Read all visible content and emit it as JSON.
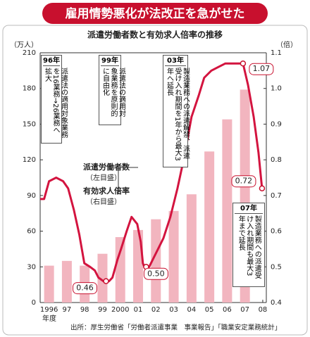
{
  "chart_data": {
    "type": "combo",
    "title": "雇用情勢悪化が法改正を急がせた",
    "subtitle": "派遣労働者数と有効求人倍率の推移",
    "y_label": "（万人）",
    "y2_label": "（倍）",
    "x_unit": "年度",
    "source": "出所：厚生労働省「労働者派遣事業　事業報告」「職業安定業務統計」",
    "xlim": [
      1995.5,
      2008.2
    ],
    "xticks": [
      1996,
      {
        "value": 1997,
        "label": "97"
      },
      {
        "value": 1998,
        "label": "98"
      },
      {
        "value": 1999,
        "label": "99"
      },
      2000,
      {
        "value": 2001,
        "label": "01"
      },
      {
        "value": 2002,
        "label": "02"
      },
      {
        "value": 2003,
        "label": "03"
      },
      {
        "value": 2004,
        "label": "04"
      },
      {
        "value": 2005,
        "label": "05"
      },
      {
        "value": 2006,
        "label": "06"
      },
      {
        "value": 2007,
        "label": "07"
      },
      {
        "value": 2008,
        "label": "08"
      }
    ],
    "ylim": [
      0,
      210
    ],
    "yticks": [
      0,
      30,
      60,
      90,
      120,
      150,
      180,
      210
    ],
    "y2lim": [
      0.4,
      1.1
    ],
    "y2ticks": [
      0.4,
      0.5,
      0.6,
      0.7,
      0.8,
      0.9,
      {
        "value": 1,
        "label": "1.0"
      },
      1.1
    ],
    "grid": false,
    "series": [
      {
        "name": "派遣労働者数",
        "note": "（左目盛）",
        "color": "#f2b5bf",
        "axis": "y",
        "x": [
          1996,
          1997,
          1998,
          1999,
          2000,
          2001,
          2002,
          2003,
          2004,
          2005,
          2006,
          2007
        ],
        "values": [
          31,
          35,
          31,
          41,
          55,
          61,
          70,
          77,
          91,
          127,
          154,
          179
        ]
      },
      {
        "name": "有効求人倍率",
        "note": "（右目盛）",
        "color": "#d3143f",
        "axis": "y2",
        "x": [
          1995.5,
          1995.72,
          1996.0,
          1996.4,
          1996.79,
          1997.07,
          1997.39,
          1997.7,
          1997.98,
          1998.3,
          1998.57,
          1998.77,
          1999.05,
          1999.37,
          1999.56,
          1999.84,
          2000.04,
          2000.36,
          2000.63,
          2000.95,
          2001.15,
          2001.27,
          2001.35,
          2001.62,
          2002.02,
          2002.42,
          2002.81,
          2003.21,
          2003.6,
          2004.0,
          2004.4,
          2004.71,
          2005.11,
          2005.5,
          2005.9,
          2006.3,
          2006.69,
          2006.89,
          2007.17,
          2007.49,
          2007.76,
          2007.96
        ],
        "values": [
          0.69,
          0.69,
          0.74,
          0.75,
          0.74,
          0.72,
          0.66,
          0.59,
          0.51,
          0.5,
          0.49,
          0.47,
          0.46,
          0.46,
          0.47,
          0.52,
          0.55,
          0.6,
          0.64,
          0.62,
          0.57,
          0.51,
          0.5,
          0.5,
          0.54,
          0.58,
          0.64,
          0.72,
          0.81,
          0.92,
          0.98,
          1.03,
          1.05,
          1.06,
          1.07,
          1.07,
          1.07,
          1.07,
          1.01,
          0.92,
          0.82,
          0.72
        ]
      }
    ],
    "callouts": [
      {
        "x": 1999.2,
        "value": 0.46,
        "label": "0.46"
      },
      {
        "x": 2001.45,
        "value": 0.5,
        "label": "0.50"
      },
      {
        "x": 2006.89,
        "value": 1.07,
        "label": "1.07"
      },
      {
        "x": 2007.96,
        "value": 0.72,
        "label": "0.72"
      }
    ],
    "annotations": [
      {
        "year": "96年",
        "text": "派遣法の適用対象業務を16業務→26業務へ拡大"
      },
      {
        "year": "99年",
        "text": "派遣法の適用対象業務を原則的に自由化"
      },
      {
        "year": "03年",
        "text": "製造業務への派遣解禁、派遣受け入れ期間を1年から最大3年へ延長"
      },
      {
        "year": "07年",
        "text": "製造業務への派遣受け入れ期間も最大3年まで延長"
      }
    ]
  }
}
